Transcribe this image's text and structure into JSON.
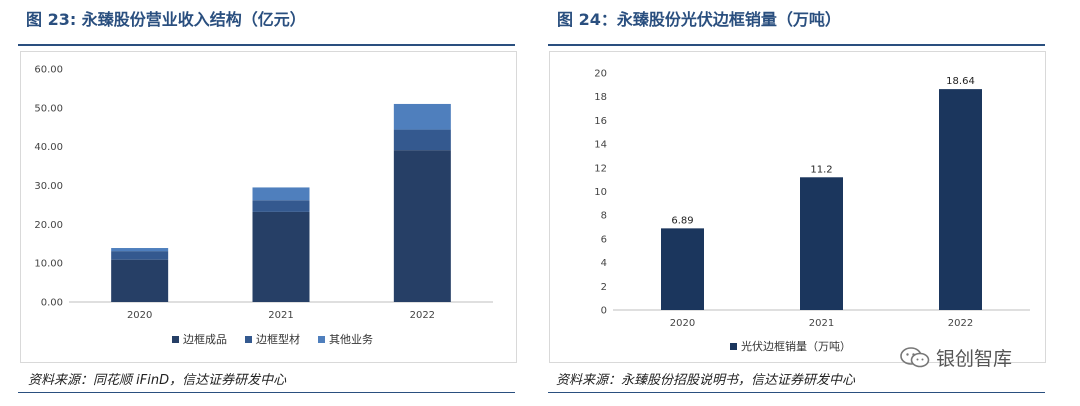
{
  "charts": {
    "left_title": "图 23: 永臻股份营业收入结构（亿元）",
    "right_title": "图 24：永臻股份光伏边框销量（万吨）",
    "left_source": "资料来源：同花顺 iFinD，信达证券研发中心",
    "right_source": "资料来源：永臻股份招股说明书，信达证券研发中心"
  },
  "watermark": {
    "text": "银创智库",
    "icon": "wechat-icon"
  },
  "chart_data": [
    {
      "type": "bar",
      "stacked": true,
      "title": "图 23: 永臻股份营业收入结构（亿元）",
      "categories": [
        "2020",
        "2021",
        "2022"
      ],
      "series": [
        {
          "name": "边框成品",
          "values": [
            10.9,
            23.2,
            39.1
          ],
          "color": "#263f66"
        },
        {
          "name": "边框型材",
          "values": [
            2.2,
            3.0,
            5.3
          ],
          "color": "#34598f"
        },
        {
          "name": "其他业务",
          "values": [
            0.8,
            3.3,
            6.6
          ],
          "color": "#4f7fbd"
        }
      ],
      "ylim": [
        0,
        60
      ],
      "yticks": [
        "0.00",
        "10.00",
        "20.00",
        "30.00",
        "40.00",
        "50.00",
        "60.00"
      ],
      "ytick_values": [
        0,
        10,
        20,
        30,
        40,
        50,
        60
      ],
      "xlabel": "",
      "ylabel": "",
      "legend": "bottom"
    },
    {
      "type": "bar",
      "title": "图 24：永臻股份光伏边框销量（万吨）",
      "categories": [
        "2020",
        "2021",
        "2022"
      ],
      "series": [
        {
          "name": "光伏边框销量（万吨）",
          "values": [
            6.89,
            11.2,
            18.64
          ],
          "labels": [
            "6.89",
            "11.2",
            "18.64"
          ],
          "color": "#1b365d"
        }
      ],
      "ylim": [
        0,
        20
      ],
      "yticks": [
        "0",
        "2",
        "4",
        "6",
        "8",
        "10",
        "12",
        "14",
        "16",
        "18",
        "20"
      ],
      "ytick_values": [
        0,
        2,
        4,
        6,
        8,
        10,
        12,
        14,
        16,
        18,
        20
      ],
      "xlabel": "",
      "ylabel": "",
      "legend": "bottom"
    }
  ]
}
